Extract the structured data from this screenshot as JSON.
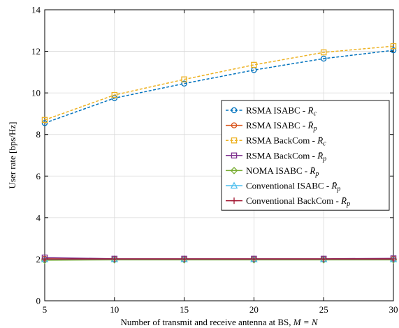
{
  "chart_data": {
    "type": "line",
    "xlabel": "Number of transmit and receive antenna at BS, ",
    "xlabel_math": "M = N",
    "ylabel": "User rate [bps/Hz]",
    "xlim": [
      5,
      30
    ],
    "ylim": [
      0,
      14
    ],
    "xticks": [
      "5",
      "10",
      "15",
      "20",
      "25",
      "30"
    ],
    "yticks": [
      "0",
      "2",
      "4",
      "6",
      "8",
      "10",
      "12",
      "14"
    ],
    "grid": true,
    "legend_position": "right",
    "x": [
      5,
      10,
      15,
      20,
      25,
      30
    ],
    "series": [
      {
        "name": "RSMA ISABC - ",
        "math": "R̄",
        "sub": "c",
        "color": "#0072BD",
        "marker": "circle",
        "dash": "dashed",
        "values": [
          8.55,
          9.75,
          10.45,
          11.1,
          11.65,
          12.05
        ]
      },
      {
        "name": "RSMA ISABC - ",
        "math": "R̄",
        "sub": "p",
        "color": "#D95319",
        "marker": "circle",
        "dash": "solid",
        "values": [
          2.02,
          2.0,
          2.0,
          2.0,
          2.0,
          2.02
        ]
      },
      {
        "name": "RSMA BackCom - ",
        "math": "R̄",
        "sub": "c",
        "color": "#EDB120",
        "marker": "square",
        "dash": "dashed",
        "values": [
          8.7,
          9.9,
          10.65,
          11.35,
          11.95,
          12.25
        ]
      },
      {
        "name": "RSMA BackCom - ",
        "math": "R̄",
        "sub": "p",
        "color": "#7E2F8E",
        "marker": "square",
        "dash": "solid",
        "values": [
          2.08,
          2.02,
          2.02,
          2.02,
          2.02,
          2.04
        ]
      },
      {
        "name": "NOMA ISABC - ",
        "math": "R̄",
        "sub": "p",
        "color": "#77AC30",
        "marker": "diamond",
        "dash": "solid",
        "values": [
          1.95,
          1.97,
          1.97,
          1.97,
          1.97,
          1.97
        ]
      },
      {
        "name": "Conventional ISABC - ",
        "math": "R̄",
        "sub": "p",
        "color": "#4DBEEE",
        "marker": "triangle",
        "dash": "solid",
        "values": [
          2.0,
          2.0,
          2.0,
          2.0,
          2.0,
          2.0
        ]
      },
      {
        "name": "Conventional BackCom - ",
        "math": "R̄",
        "sub": "p",
        "color": "#A2142F",
        "marker": "plus",
        "dash": "solid",
        "values": [
          2.01,
          2.01,
          2.01,
          2.01,
          2.01,
          2.01
        ]
      }
    ]
  }
}
